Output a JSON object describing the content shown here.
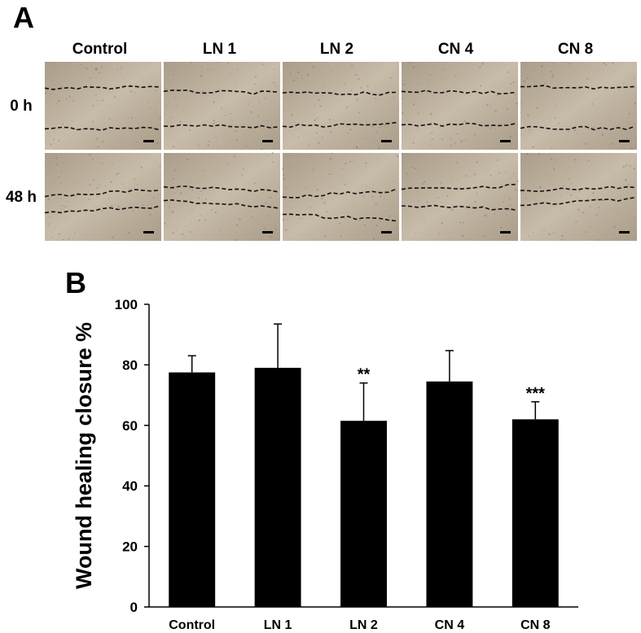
{
  "panel_a": {
    "letter": "A",
    "columns": [
      "Control",
      "LN 1",
      "LN 2",
      "CN 4",
      "CN 8"
    ],
    "rows": [
      "0 h",
      "48 h"
    ]
  },
  "panel_b": {
    "letter": "B"
  },
  "chart_data": {
    "type": "bar",
    "title": "",
    "xlabel": "",
    "ylabel": "Wound healing closure  %",
    "categories": [
      "Control",
      "LN 1",
      "LN 2",
      "CN 4",
      "CN 8"
    ],
    "values": [
      77.5,
      79,
      61.5,
      74.5,
      62
    ],
    "errors": [
      5.5,
      14.5,
      12.5,
      10.2,
      5.8
    ],
    "annotations": [
      "",
      "",
      "**",
      "",
      "***"
    ],
    "ylim": [
      0,
      100
    ],
    "yticks": [
      0,
      20,
      40,
      60,
      80,
      100
    ],
    "grid": false,
    "bar_color": "#000000"
  },
  "colors": {
    "micrograph_bg": "#c7bba9",
    "micrograph_dark": "#aa9d89",
    "wound_line": "#111111"
  }
}
